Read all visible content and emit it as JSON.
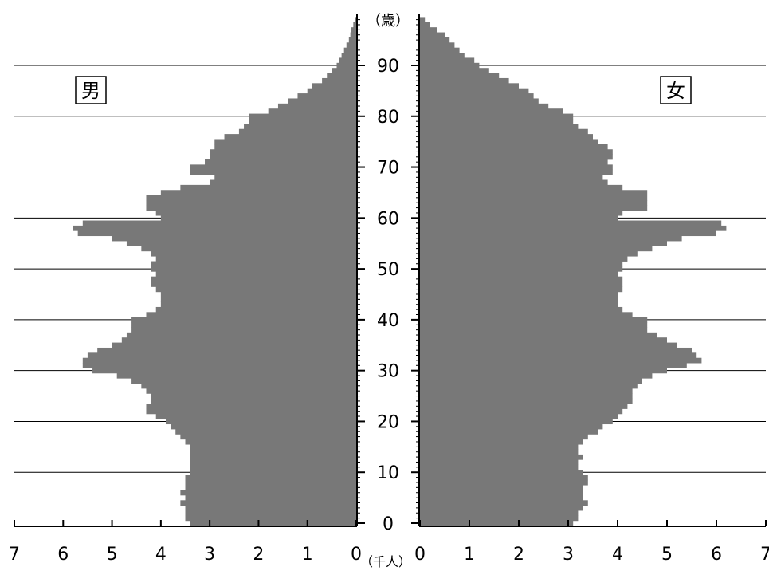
{
  "chart_data": {
    "type": "bar",
    "orientation": "horizontal-population-pyramid",
    "left_label": "男",
    "right_label": "女",
    "age_unit_label": "（歳）",
    "x_unit_label": "（千人）",
    "age_ticks": [
      "0",
      "10",
      "20",
      "30",
      "40",
      "50",
      "60",
      "70",
      "80",
      "90"
    ],
    "x_ticks_left": [
      "7",
      "6",
      "5",
      "4",
      "3",
      "2",
      "1",
      "0"
    ],
    "x_ticks_right": [
      "0",
      "1",
      "2",
      "3",
      "4",
      "5",
      "6",
      "7"
    ],
    "xlim": [
      0,
      7
    ],
    "ylim": [
      0,
      99
    ],
    "bar_color": "#787878",
    "categories": [
      0,
      1,
      2,
      3,
      4,
      5,
      6,
      7,
      8,
      9,
      10,
      11,
      12,
      13,
      14,
      15,
      16,
      17,
      18,
      19,
      20,
      21,
      22,
      23,
      24,
      25,
      26,
      27,
      28,
      29,
      30,
      31,
      32,
      33,
      34,
      35,
      36,
      37,
      38,
      39,
      40,
      41,
      42,
      43,
      44,
      45,
      46,
      47,
      48,
      49,
      50,
      51,
      52,
      53,
      54,
      55,
      56,
      57,
      58,
      59,
      60,
      61,
      62,
      63,
      64,
      65,
      66,
      67,
      68,
      69,
      70,
      71,
      72,
      73,
      74,
      75,
      76,
      77,
      78,
      79,
      80,
      81,
      82,
      83,
      84,
      85,
      86,
      87,
      88,
      89,
      90,
      91,
      92,
      93,
      94,
      95,
      96,
      97,
      98,
      99
    ],
    "series": [
      {
        "name": "男",
        "values": [
          3.4,
          3.5,
          3.5,
          3.5,
          3.6,
          3.5,
          3.6,
          3.5,
          3.5,
          3.5,
          3.4,
          3.4,
          3.4,
          3.4,
          3.4,
          3.4,
          3.5,
          3.6,
          3.7,
          3.8,
          3.9,
          4.1,
          4.3,
          4.3,
          4.2,
          4.2,
          4.3,
          4.4,
          4.6,
          4.9,
          5.4,
          5.6,
          5.6,
          5.5,
          5.3,
          5.0,
          4.8,
          4.7,
          4.6,
          4.6,
          4.6,
          4.3,
          4.1,
          4.0,
          4.0,
          4.0,
          4.1,
          4.2,
          4.2,
          4.1,
          4.2,
          4.2,
          4.1,
          4.2,
          4.4,
          4.7,
          5.0,
          5.7,
          5.8,
          5.6,
          4.0,
          4.1,
          4.3,
          4.3,
          4.3,
          4.0,
          3.6,
          3.0,
          2.9,
          3.4,
          3.4,
          3.1,
          3.0,
          3.0,
          2.9,
          2.9,
          2.7,
          2.4,
          2.3,
          2.2,
          2.2,
          1.8,
          1.6,
          1.4,
          1.2,
          1.0,
          0.9,
          0.7,
          0.6,
          0.5,
          0.4,
          0.35,
          0.3,
          0.25,
          0.2,
          0.15,
          0.12,
          0.1,
          0.06,
          0.03
        ]
      },
      {
        "name": "女",
        "values": [
          3.1,
          3.2,
          3.2,
          3.3,
          3.4,
          3.3,
          3.3,
          3.3,
          3.4,
          3.4,
          3.3,
          3.2,
          3.2,
          3.3,
          3.2,
          3.2,
          3.3,
          3.4,
          3.6,
          3.7,
          3.9,
          4.0,
          4.1,
          4.2,
          4.3,
          4.3,
          4.3,
          4.4,
          4.5,
          4.7,
          5.0,
          5.4,
          5.7,
          5.6,
          5.5,
          5.2,
          5.0,
          4.8,
          4.6,
          4.6,
          4.6,
          4.3,
          4.1,
          4.0,
          4.0,
          4.0,
          4.1,
          4.1,
          4.1,
          4.0,
          4.1,
          4.1,
          4.2,
          4.4,
          4.7,
          5.0,
          5.3,
          6.0,
          6.2,
          6.1,
          4.0,
          4.1,
          4.6,
          4.6,
          4.6,
          4.6,
          4.1,
          3.8,
          3.7,
          3.9,
          3.9,
          3.8,
          3.9,
          3.9,
          3.8,
          3.6,
          3.5,
          3.4,
          3.2,
          3.1,
          3.1,
          2.9,
          2.6,
          2.4,
          2.3,
          2.2,
          2.0,
          1.8,
          1.6,
          1.4,
          1.2,
          1.1,
          0.9,
          0.8,
          0.7,
          0.6,
          0.5,
          0.35,
          0.2,
          0.1
        ]
      }
    ]
  }
}
